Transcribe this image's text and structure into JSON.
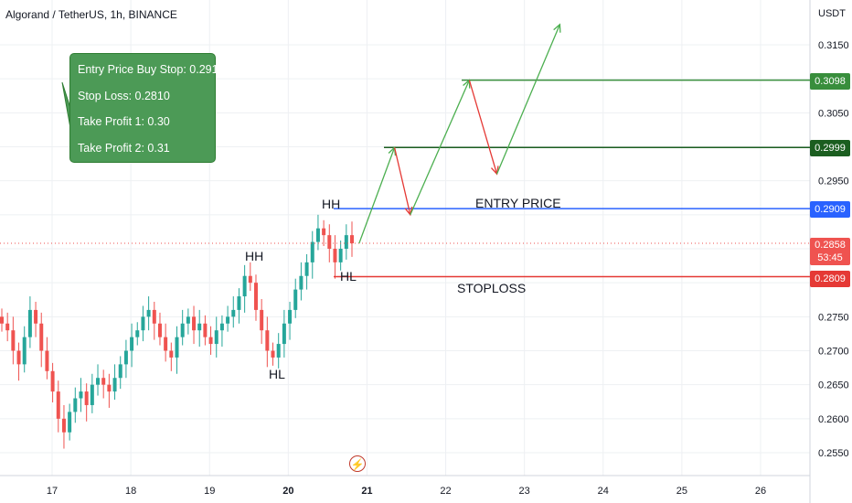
{
  "header": {
    "title": "Algorand / TetherUS, 1h, BINANCE"
  },
  "axis": {
    "currency": "USDT",
    "price_ticks": [
      "0.3150",
      "0.3050",
      "0.2950",
      "0.2750",
      "0.2700",
      "0.2650",
      "0.2600",
      "0.2550"
    ],
    "date_ticks": [
      "17",
      "18",
      "19",
      "20",
      "21",
      "22",
      "23",
      "24",
      "25",
      "26"
    ]
  },
  "info_box": {
    "lines": [
      "Entry Price Buy Stop: 0.2910",
      "Stop Loss: 0.2810",
      "Take Profit 1: 0.30",
      "Take Profit 2: 0.31"
    ]
  },
  "price_tags": {
    "tp2": "0.3098",
    "tp1": "0.2999",
    "entry": "0.2909",
    "current": "0.2858",
    "countdown": "53:45",
    "stop": "0.2809"
  },
  "annotations": {
    "entry_label": "ENTRY PRICE",
    "stop_label": "STOPLOSS",
    "hh1": "HH",
    "hh2": "HH",
    "hl1": "HL",
    "hl2": "HL"
  },
  "colors": {
    "bull": "#26a69a",
    "bear": "#ef5350",
    "entry_line": "#2962ff",
    "stop_line": "#e53935",
    "tp1_line": "#1b5e20",
    "tp2_line": "#388e3c",
    "projection_up": "#4caf50",
    "projection_down": "#e53935",
    "box": "#4c9a56"
  },
  "chart_data": {
    "type": "candlestick",
    "symbol": "Algorand / TetherUS",
    "interval": "1h",
    "exchange": "BINANCE",
    "ylim": [
      0.252,
      0.318
    ],
    "x_ticks": [
      "17",
      "18",
      "19",
      "20",
      "21",
      "22",
      "23",
      "24",
      "25",
      "26"
    ],
    "levels": [
      {
        "label": "ENTRY PRICE",
        "value": 0.2909
      },
      {
        "label": "STOPLOSS",
        "value": 0.2809
      },
      {
        "label": "Take Profit 1",
        "value": 0.2999
      },
      {
        "label": "Take Profit 2",
        "value": 0.3098
      }
    ],
    "current_price": 0.2858,
    "closes": [
      0.274,
      0.273,
      0.27,
      0.268,
      0.272,
      0.276,
      0.274,
      0.27,
      0.267,
      0.264,
      0.26,
      0.258,
      0.261,
      0.263,
      0.264,
      0.262,
      0.265,
      0.266,
      0.265,
      0.264,
      0.266,
      0.268,
      0.27,
      0.272,
      0.273,
      0.275,
      0.276,
      0.274,
      0.272,
      0.27,
      0.269,
      0.272,
      0.274,
      0.275,
      0.273,
      0.274,
      0.272,
      0.271,
      0.273,
      0.274,
      0.275,
      0.276,
      0.278,
      0.281,
      0.28,
      0.276,
      0.273,
      0.27,
      0.269,
      0.271,
      0.274,
      0.276,
      0.279,
      0.281,
      0.283,
      0.286,
      0.288,
      0.287,
      0.285,
      0.283,
      0.285,
      0.287,
      0.2858
    ],
    "projection_path": [
      [
        20.9,
        0.2858
      ],
      [
        21.35,
        0.2999
      ],
      [
        21.55,
        0.29
      ],
      [
        22.3,
        0.3098
      ],
      [
        22.65,
        0.296
      ],
      [
        23.45,
        0.318
      ]
    ]
  }
}
